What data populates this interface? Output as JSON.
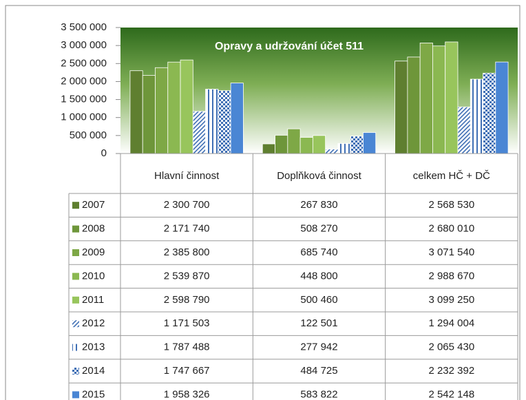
{
  "chart_data": {
    "type": "bar",
    "title": "Opravy a udržování  účet 511",
    "categories": [
      "Hlavní činnost",
      "Doplňková činnost",
      "celkem HČ + DČ"
    ],
    "ylim": [
      0,
      3500000
    ],
    "yticks": [
      {
        "value": 0,
        "label": "0"
      },
      {
        "value": 500000,
        "label": "500 000"
      },
      {
        "value": 1000000,
        "label": "1 000 000"
      },
      {
        "value": 1500000,
        "label": "1 500 000"
      },
      {
        "value": 2000000,
        "label": "2 000 000"
      },
      {
        "value": 2500000,
        "label": "2 500 000"
      },
      {
        "value": 3000000,
        "label": "3 000 000"
      },
      {
        "value": 3500000,
        "label": "3 500 000"
      }
    ],
    "series": [
      {
        "name": "2007",
        "color": "#5f7f30",
        "values": [
          2300700,
          267830,
          2568530
        ],
        "value_labels": [
          "2 300 700",
          "267 830",
          "2 568 530"
        ]
      },
      {
        "name": "2008",
        "color": "#6e963a",
        "values": [
          2171740,
          508270,
          2680010
        ],
        "value_labels": [
          "2 171 740",
          "508 270",
          "2 680 010"
        ]
      },
      {
        "name": "2009",
        "color": "#7ea846",
        "values": [
          2385800,
          685740,
          3071540
        ],
        "value_labels": [
          "2 385 800",
          "685 740",
          "3 071 540"
        ]
      },
      {
        "name": "2010",
        "color": "#8bb851",
        "values": [
          2539870,
          448800,
          2988670
        ],
        "value_labels": [
          "2 539 870",
          "448 800",
          "2 988 670"
        ]
      },
      {
        "name": "2011",
        "color": "#98c55c",
        "values": [
          2598790,
          500460,
          3099250
        ],
        "value_labels": [
          "2 598 790",
          "500 460",
          "3 099 250"
        ]
      },
      {
        "name": "2012",
        "color": "#3f6fb5",
        "pattern": "diagonal",
        "values": [
          1171503,
          122501,
          1294004
        ],
        "value_labels": [
          "1 171 503",
          "122 501",
          "1 294 004"
        ]
      },
      {
        "name": "2013",
        "color": "#3f6fb5",
        "pattern": "vertical",
        "values": [
          1787488,
          277942,
          2065430
        ],
        "value_labels": [
          "1 787 488",
          "277 942",
          "2 065 430"
        ]
      },
      {
        "name": "2014",
        "color": "#3f6fb5",
        "pattern": "dots",
        "values": [
          1747667,
          484725,
          2232392
        ],
        "value_labels": [
          "1 747 667",
          "484 725",
          "2 232 392"
        ]
      },
      {
        "name": "2015",
        "color": "#4a86d4",
        "values": [
          1958326,
          583822,
          2542148
        ],
        "value_labels": [
          "1 958 326",
          "583 822",
          "2 542 148"
        ]
      }
    ]
  }
}
